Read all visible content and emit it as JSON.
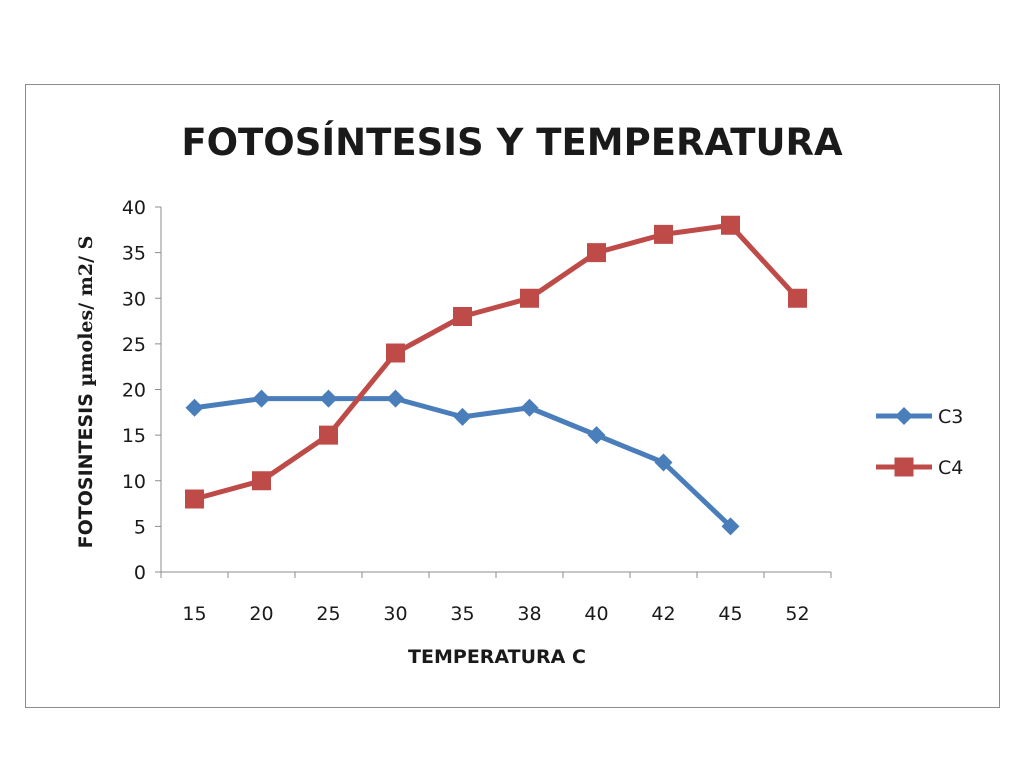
{
  "chart_data": {
    "type": "line",
    "title": "FOTOSÍNTESIS Y TEMPERATURA",
    "xlabel": "TEMPERATURA C",
    "ylabel_main": "FOTOSINTESIS ",
    "ylabel_unit": "µmoles/ m2/ S",
    "categories": [
      "15",
      "20",
      "25",
      "30",
      "35",
      "38",
      "40",
      "42",
      "45",
      "52"
    ],
    "ylim": [
      0,
      40
    ],
    "yticks": [
      "0",
      "5",
      "10",
      "15",
      "20",
      "25",
      "30",
      "35",
      "40"
    ],
    "grid": false,
    "legend_position": "right",
    "series": [
      {
        "name": "C3",
        "color": "#4a7ebb",
        "marker": "diamond",
        "values": [
          18,
          19,
          19,
          19,
          17,
          18,
          15,
          12,
          5,
          null
        ]
      },
      {
        "name": "C4",
        "color": "#be4b48",
        "marker": "square",
        "values": [
          8,
          10,
          15,
          24,
          28,
          30,
          35,
          37,
          38,
          30
        ]
      }
    ]
  }
}
